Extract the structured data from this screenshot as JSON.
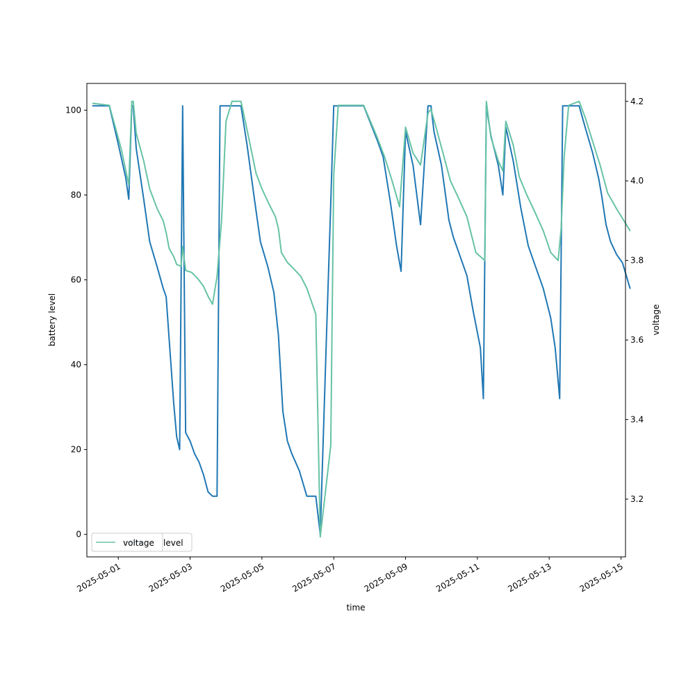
{
  "chart_data": {
    "type": "line",
    "xlabel": "time",
    "ylabel_left": "battery level",
    "ylabel_right": "voltage",
    "xlim": [
      "2025-04-30T03:00",
      "2025-05-15T03:00"
    ],
    "ylim_left": [
      -5.3,
      106.3
    ],
    "ylim_right": [
      3.055,
      4.245
    ],
    "x_ticks": [
      "2025-05-01",
      "2025-05-03",
      "2025-05-05",
      "2025-05-07",
      "2025-05-09",
      "2025-05-11",
      "2025-05-13",
      "2025-05-15"
    ],
    "y_ticks_left": [
      0,
      20,
      40,
      60,
      80,
      100
    ],
    "y_ticks_right": [
      3.2,
      3.4,
      3.6,
      3.8,
      4.0,
      4.2
    ],
    "grid": false,
    "legend": {
      "placement": "lower-left",
      "entries": [
        {
          "label": "level",
          "color": "#1f77b4"
        },
        {
          "label": "voltage",
          "color": "#66c2a5"
        }
      ]
    },
    "series": [
      {
        "name": "level",
        "axis": "left",
        "color": "#1f77b4",
        "points": [
          [
            "2025-04-30T07:00",
            101
          ],
          [
            "2025-04-30T18:00",
            101
          ],
          [
            "2025-05-01T00:00",
            92
          ],
          [
            "2025-05-01T05:00",
            84
          ],
          [
            "2025-05-01T07:00",
            79
          ],
          [
            "2025-05-01T09:00",
            101
          ],
          [
            "2025-05-01T10:00",
            101
          ],
          [
            "2025-05-01T12:00",
            91
          ],
          [
            "2025-05-01T17:00",
            79
          ],
          [
            "2025-05-01T21:00",
            69
          ],
          [
            "2025-05-02T02:00",
            63
          ],
          [
            "2025-05-02T06:00",
            58
          ],
          [
            "2025-05-02T08:00",
            56
          ],
          [
            "2025-05-02T10:00",
            46
          ],
          [
            "2025-05-02T13:00",
            31
          ],
          [
            "2025-05-02T15:00",
            23
          ],
          [
            "2025-05-02T17:00",
            20
          ],
          [
            "2025-05-02T19:00",
            101
          ],
          [
            "2025-05-02T21:00",
            24
          ],
          [
            "2025-05-03T00:00",
            22
          ],
          [
            "2025-05-03T03:00",
            19
          ],
          [
            "2025-05-03T06:00",
            17
          ],
          [
            "2025-05-03T09:00",
            14
          ],
          [
            "2025-05-03T12:00",
            10
          ],
          [
            "2025-05-03T15:00",
            9
          ],
          [
            "2025-05-03T18:00",
            9
          ],
          [
            "2025-05-03T20:00",
            101
          ],
          [
            "2025-05-04T10:00",
            101
          ],
          [
            "2025-05-04T14:00",
            92
          ],
          [
            "2025-05-04T19:00",
            79
          ],
          [
            "2025-05-04T23:00",
            69
          ],
          [
            "2025-05-05T04:00",
            63
          ],
          [
            "2025-05-05T08:00",
            57
          ],
          [
            "2025-05-05T11:00",
            47
          ],
          [
            "2025-05-05T14:00",
            29
          ],
          [
            "2025-05-05T17:00",
            22
          ],
          [
            "2025-05-05T20:00",
            19
          ],
          [
            "2025-05-06T01:00",
            15
          ],
          [
            "2025-05-06T06:00",
            9
          ],
          [
            "2025-05-06T12:00",
            9
          ],
          [
            "2025-05-06T15:00",
            0
          ],
          [
            "2025-05-06T19:00",
            45
          ],
          [
            "2025-05-06T22:00",
            78
          ],
          [
            "2025-05-07T00:00",
            101
          ],
          [
            "2025-05-07T20:00",
            101
          ],
          [
            "2025-05-08T05:00",
            93
          ],
          [
            "2025-05-08T09:00",
            89
          ],
          [
            "2025-05-08T14:00",
            78
          ],
          [
            "2025-05-08T18:00",
            68
          ],
          [
            "2025-05-08T21:00",
            62
          ],
          [
            "2025-05-09T00:00",
            95
          ],
          [
            "2025-05-09T05:00",
            87
          ],
          [
            "2025-05-09T10:00",
            73
          ],
          [
            "2025-05-09T15:00",
            101
          ],
          [
            "2025-05-09T17:00",
            101
          ],
          [
            "2025-05-09T19:00",
            95
          ],
          [
            "2025-05-10T00:00",
            87
          ],
          [
            "2025-05-10T05:00",
            74
          ],
          [
            "2025-05-10T08:00",
            70
          ],
          [
            "2025-05-10T11:00",
            67
          ],
          [
            "2025-05-10T17:00",
            61
          ],
          [
            "2025-05-10T21:00",
            53
          ],
          [
            "2025-05-11T02:00",
            44
          ],
          [
            "2025-05-11T04:00",
            32
          ],
          [
            "2025-05-11T06:00",
            101
          ],
          [
            "2025-05-11T09:00",
            94
          ],
          [
            "2025-05-11T14:00",
            87
          ],
          [
            "2025-05-11T17:00",
            80
          ],
          [
            "2025-05-11T19:00",
            96
          ],
          [
            "2025-05-12T00:00",
            88
          ],
          [
            "2025-05-12T05:00",
            77
          ],
          [
            "2025-05-12T10:00",
            68
          ],
          [
            "2025-05-12T15:00",
            63
          ],
          [
            "2025-05-12T20:00",
            58
          ],
          [
            "2025-05-13T01:00",
            51
          ],
          [
            "2025-05-13T04:00",
            44
          ],
          [
            "2025-05-13T07:00",
            32
          ],
          [
            "2025-05-13T09:00",
            101
          ],
          [
            "2025-05-13T20:00",
            101
          ],
          [
            "2025-05-14T00:00",
            96
          ],
          [
            "2025-05-14T05:00",
            90
          ],
          [
            "2025-05-14T09:00",
            84
          ],
          [
            "2025-05-14T11:00",
            80
          ],
          [
            "2025-05-14T14:00",
            73
          ],
          [
            "2025-05-14T17:00",
            69
          ],
          [
            "2025-05-14T21:00",
            66
          ],
          [
            "2025-05-15T01:00",
            64
          ],
          [
            "2025-05-15T06:00",
            58
          ]
        ]
      },
      {
        "name": "voltage",
        "axis": "right",
        "color": "#66c2a5",
        "points": [
          [
            "2025-04-30T07:00",
            4.195
          ],
          [
            "2025-04-30T18:00",
            4.19
          ],
          [
            "2025-05-01T02:00",
            4.08
          ],
          [
            "2025-05-01T07:00",
            3.99
          ],
          [
            "2025-05-01T09:00",
            4.2
          ],
          [
            "2025-05-01T10:00",
            4.2
          ],
          [
            "2025-05-01T12:00",
            4.12
          ],
          [
            "2025-05-01T17:00",
            4.05
          ],
          [
            "2025-05-01T21:00",
            3.98
          ],
          [
            "2025-05-02T02:00",
            3.93
          ],
          [
            "2025-05-02T06:00",
            3.9
          ],
          [
            "2025-05-02T08:00",
            3.87
          ],
          [
            "2025-05-02T10:00",
            3.83
          ],
          [
            "2025-05-02T13:00",
            3.81
          ],
          [
            "2025-05-02T15:00",
            3.79
          ],
          [
            "2025-05-02T18:00",
            3.785
          ],
          [
            "2025-05-02T19:00",
            3.835
          ],
          [
            "2025-05-02T21:00",
            3.775
          ],
          [
            "2025-05-03T01:00",
            3.77
          ],
          [
            "2025-05-03T05:00",
            3.755
          ],
          [
            "2025-05-03T09:00",
            3.735
          ],
          [
            "2025-05-03T12:00",
            3.71
          ],
          [
            "2025-05-03T15:00",
            3.69
          ],
          [
            "2025-05-03T18:00",
            3.76
          ],
          [
            "2025-05-03T21:00",
            3.9
          ],
          [
            "2025-05-04T00:00",
            4.15
          ],
          [
            "2025-05-04T04:00",
            4.2
          ],
          [
            "2025-05-04T10:00",
            4.2
          ],
          [
            "2025-05-04T14:00",
            4.13
          ],
          [
            "2025-05-04T20:00",
            4.02
          ],
          [
            "2025-05-05T00:00",
            3.98
          ],
          [
            "2025-05-05T05:00",
            3.94
          ],
          [
            "2025-05-05T09:00",
            3.91
          ],
          [
            "2025-05-05T11:00",
            3.88
          ],
          [
            "2025-05-05T13:00",
            3.82
          ],
          [
            "2025-05-05T17:00",
            3.795
          ],
          [
            "2025-05-05T21:00",
            3.78
          ],
          [
            "2025-05-06T02:00",
            3.76
          ],
          [
            "2025-05-06T06:00",
            3.73
          ],
          [
            "2025-05-06T12:00",
            3.665
          ],
          [
            "2025-05-06T15:00",
            3.105
          ],
          [
            "2025-05-06T22:00",
            3.335
          ],
          [
            "2025-05-07T00:00",
            4.015
          ],
          [
            "2025-05-07T03:00",
            4.19
          ],
          [
            "2025-05-07T20:00",
            4.19
          ],
          [
            "2025-05-08T05:00",
            4.11
          ],
          [
            "2025-05-08T10:00",
            4.06
          ],
          [
            "2025-05-08T15:00",
            4.0
          ],
          [
            "2025-05-08T20:00",
            3.935
          ],
          [
            "2025-05-09T00:00",
            4.135
          ],
          [
            "2025-05-09T05:00",
            4.07
          ],
          [
            "2025-05-09T10:00",
            4.04
          ],
          [
            "2025-05-09T15:00",
            4.17
          ],
          [
            "2025-05-09T17:00",
            4.18
          ],
          [
            "2025-05-09T20:00",
            4.14
          ],
          [
            "2025-05-10T01:00",
            4.07
          ],
          [
            "2025-05-10T06:00",
            4.0
          ],
          [
            "2025-05-10T11:00",
            3.96
          ],
          [
            "2025-05-10T17:00",
            3.91
          ],
          [
            "2025-05-10T23:00",
            3.82
          ],
          [
            "2025-05-11T05:00",
            3.8
          ],
          [
            "2025-05-11T06:00",
            4.2
          ],
          [
            "2025-05-11T09:00",
            4.11
          ],
          [
            "2025-05-11T14:00",
            4.05
          ],
          [
            "2025-05-11T17:00",
            4.025
          ],
          [
            "2025-05-11T19:00",
            4.15
          ],
          [
            "2025-05-12T00:00",
            4.09
          ],
          [
            "2025-05-12T04:00",
            4.01
          ],
          [
            "2025-05-12T09:00",
            3.965
          ],
          [
            "2025-05-12T14:00",
            3.925
          ],
          [
            "2025-05-12T20:00",
            3.875
          ],
          [
            "2025-05-13T01:00",
            3.82
          ],
          [
            "2025-05-13T06:00",
            3.8
          ],
          [
            "2025-05-13T08:00",
            3.88
          ],
          [
            "2025-05-13T10:00",
            4.06
          ],
          [
            "2025-05-13T13:00",
            4.19
          ],
          [
            "2025-05-13T20:00",
            4.2
          ],
          [
            "2025-05-14T00:00",
            4.16
          ],
          [
            "2025-05-14T05:00",
            4.1
          ],
          [
            "2025-05-14T10:00",
            4.04
          ],
          [
            "2025-05-14T15:00",
            3.97
          ],
          [
            "2025-05-14T21:00",
            3.93
          ],
          [
            "2025-05-15T06:00",
            3.875
          ]
        ]
      }
    ]
  }
}
